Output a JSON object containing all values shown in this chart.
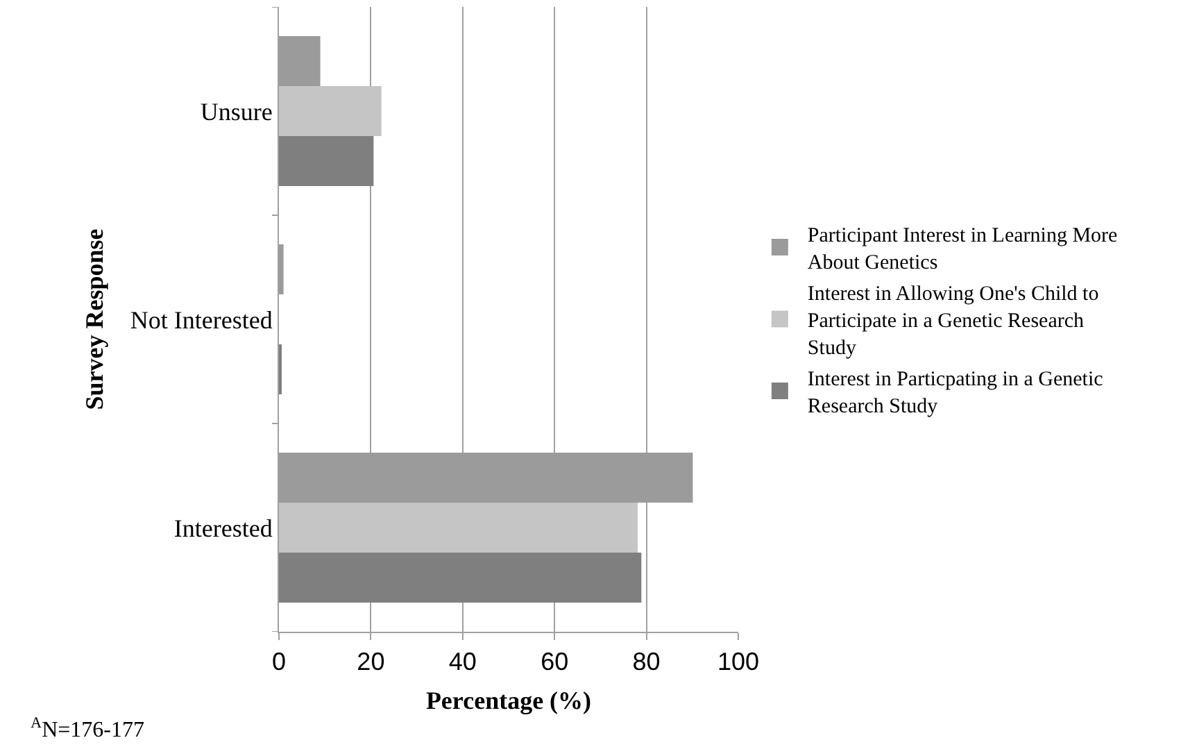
{
  "chart_data": {
    "type": "bar",
    "orientation": "horizontal",
    "ylabel": "Survey Response",
    "xlabel": "Percentage (%)",
    "categories": [
      "Unsure",
      "Not Interested",
      "Interested"
    ],
    "series": [
      {
        "name": "Participant Interest in Learning More About Genetics",
        "color": "#9a9b9a",
        "values": [
          9.0,
          1.0,
          90.1
        ]
      },
      {
        "name": "Interest in Allowing One's Child to Participate in a Genetic Research Study",
        "color": "#c4c5c4",
        "values": [
          22.3,
          0,
          78.1
        ]
      },
      {
        "name": "Interest in Particpating in a Genetic Research Study",
        "color": "#7f7f7f",
        "values": [
          20.6,
          0.6,
          78.9
        ]
      }
    ],
    "xlim": [
      0,
      100
    ],
    "xticks": [
      0,
      20,
      40,
      60,
      80,
      100
    ],
    "grid": "x",
    "legend": "right",
    "annotations": [
      "$^{A}$N=176-177"
    ]
  }
}
